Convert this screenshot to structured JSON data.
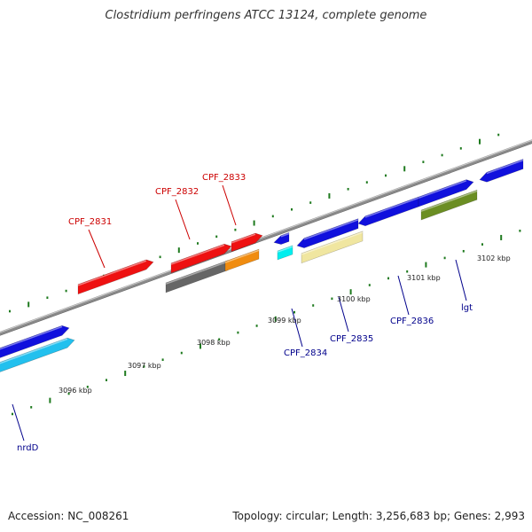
{
  "title": "Clostridium perfringens ATCC 13124, complete genome",
  "footer": {
    "accession": "Accession: NC_008261",
    "summary": "Topology: circular; Length: 3,256,683 bp; Genes: 2,993"
  },
  "colors": {
    "backbone": "#8a8a8a",
    "tick": "#1e7a1e",
    "label_forward": "#cc0000",
    "label_reverse": "#00008b"
  },
  "scale_labels": [
    {
      "text": "3096 kbp",
      "kbp": 3096
    },
    {
      "text": "3097 kbp",
      "kbp": 3097
    },
    {
      "text": "3098 kbp",
      "kbp": 3098
    },
    {
      "text": "3099 kbp",
      "kbp": 3099
    },
    {
      "text": "3100 kbp",
      "kbp": 3100
    },
    {
      "text": "3101 kbp",
      "kbp": 3101
    },
    {
      "text": "3102 kbp",
      "kbp": 3102
    }
  ],
  "gene_labels": [
    {
      "text": "CPF_2831",
      "strand": "forward"
    },
    {
      "text": "CPF_2832",
      "strand": "forward"
    },
    {
      "text": "CPF_2833",
      "strand": "forward"
    },
    {
      "text": "CPF_2834",
      "strand": "reverse"
    },
    {
      "text": "CPF_2835",
      "strand": "reverse"
    },
    {
      "text": "CPF_2836",
      "strand": "reverse"
    },
    {
      "text": "lgt",
      "strand": "reverse"
    },
    {
      "text": "nrdD",
      "strand": "reverse"
    }
  ],
  "features": [
    {
      "name": "feature-blue-left",
      "color": "#1010dd",
      "track": "reverse-outer"
    },
    {
      "name": "feature-cyan-left",
      "color": "#22c0ee",
      "track": "reverse-inner"
    },
    {
      "name": "CPF_2831",
      "color": "#ee1111",
      "track": "forward-inner"
    },
    {
      "name": "CPF_2832-grey",
      "color": "#666666",
      "track": "forward-outer"
    },
    {
      "name": "CPF_2833",
      "color": "#f08c10",
      "track": "forward-outer"
    },
    {
      "name": "feature-red-mid",
      "color": "#ee1111",
      "track": "forward-inner"
    },
    {
      "name": "feature-red-small",
      "color": "#ee1111",
      "track": "forward-inner"
    },
    {
      "name": "feature-blue-small",
      "color": "#1010dd",
      "track": "reverse-outer"
    },
    {
      "name": "CPF_2834",
      "color": "#00eeee",
      "track": "reverse-inner"
    },
    {
      "name": "CPF_2835-blue",
      "color": "#1010dd",
      "track": "reverse-outer"
    },
    {
      "name": "CPF_2835-yellow",
      "color": "#f0e6a0",
      "track": "reverse-inner"
    },
    {
      "name": "CPF_2836",
      "color": "#1010dd",
      "track": "reverse-outer"
    },
    {
      "name": "lgt-blue",
      "color": "#1010dd",
      "track": "reverse-outer"
    },
    {
      "name": "lgt-green",
      "color": "#6b8e23",
      "track": "reverse-inner"
    },
    {
      "name": "feature-blue-right",
      "color": "#1010dd",
      "track": "reverse-outer"
    }
  ]
}
